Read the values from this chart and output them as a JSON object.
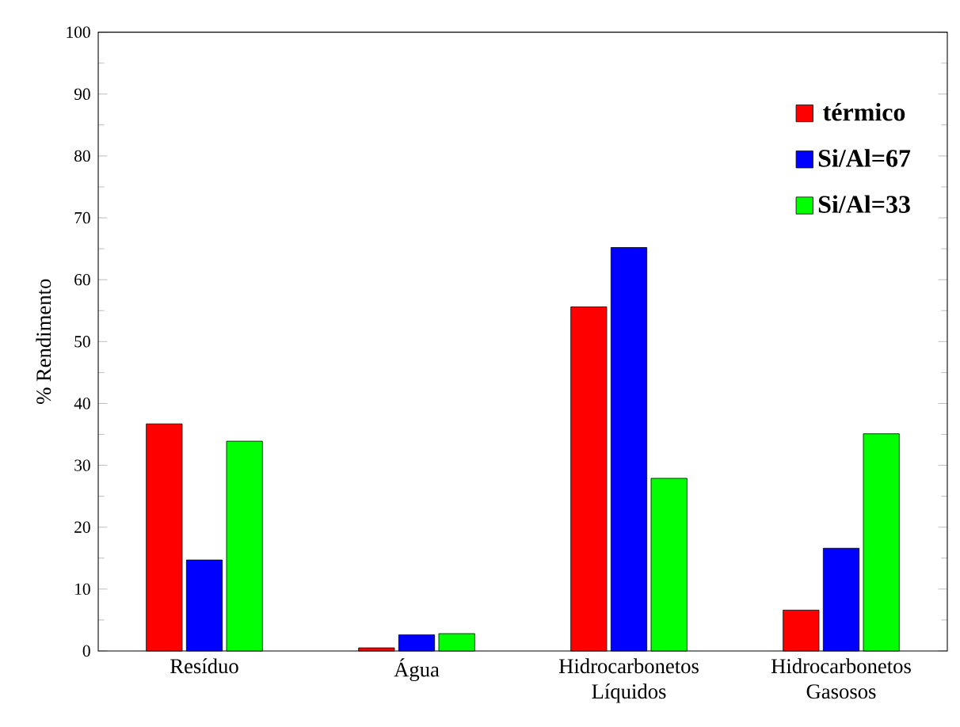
{
  "chart_data": {
    "type": "bar",
    "ylabel": "% Rendimento",
    "categories": [
      "Resíduo",
      "Água",
      "Hidrocarbonetos Líquidos",
      "Hidrocarbonetos Gasosos"
    ],
    "series": [
      {
        "name": "térmico",
        "color": "#ff0000",
        "values": [
          36.7,
          0.5,
          55.6,
          6.6
        ]
      },
      {
        "name": "Si/Al=67",
        "color": "#0000ff",
        "values": [
          14.7,
          2.6,
          65.2,
          16.6
        ]
      },
      {
        "name": "Si/Al=33",
        "color": "#00ff00",
        "values": [
          33.9,
          2.8,
          27.9,
          35.1
        ]
      }
    ],
    "ylim": [
      0,
      100
    ],
    "yticks": [
      0,
      10,
      20,
      30,
      40,
      50,
      60,
      70,
      80,
      90,
      100
    ],
    "grid": false,
    "legend": "top right"
  }
}
